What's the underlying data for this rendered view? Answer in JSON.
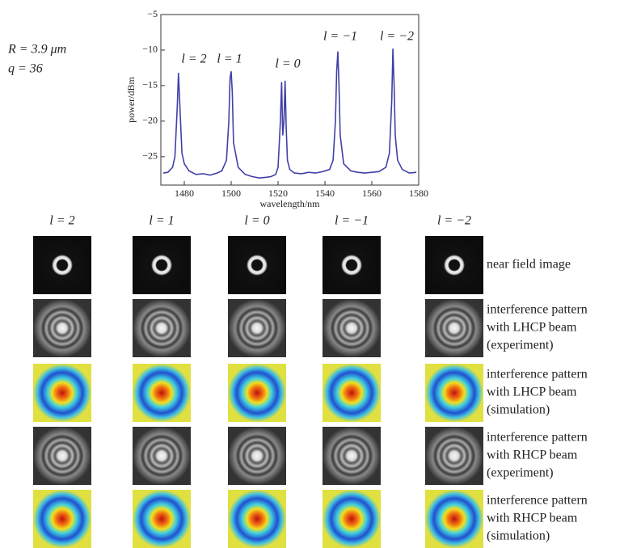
{
  "chart_data": {
    "type": "line",
    "color": "#4040a8",
    "annotations": [
      "R = 3.9 μm",
      "q = 36"
    ],
    "peak_labels": [
      "l = 2",
      "l = 1",
      "l = 0",
      "l = −1",
      "l = −2"
    ],
    "x_label": "wavelength/nm",
    "y_label": "power/dBm",
    "xlim": [
      1470,
      1580
    ],
    "xticks": [
      1480,
      1500,
      1520,
      1540,
      1560,
      1580
    ],
    "ylim": [
      -29,
      -5
    ],
    "yticks": [
      {
        "value": -25,
        "label": "−25"
      },
      {
        "value": -20,
        "label": "−20"
      },
      {
        "value": -15,
        "label": "−15"
      },
      {
        "value": -10,
        "label": "−10"
      },
      {
        "value": -5,
        "label": "−5"
      }
    ],
    "x": [
      1471,
      1473,
      1475,
      1476,
      1477,
      1477.5,
      1478,
      1479,
      1480,
      1482,
      1485,
      1488,
      1491,
      1494,
      1496,
      1498,
      1499,
      1499.5,
      1500,
      1500.5,
      1501,
      1503,
      1506,
      1509,
      1512,
      1515,
      1517,
      1519,
      1520,
      1521,
      1521.5,
      1522,
      1522.5,
      1523,
      1523.5,
      1524,
      1525,
      1527,
      1530,
      1533,
      1536,
      1539,
      1542,
      1543.5,
      1544.5,
      1545,
      1545.5,
      1546,
      1546.5,
      1548,
      1551,
      1554,
      1557,
      1560,
      1563,
      1566,
      1567.5,
      1568.5,
      1569,
      1569.5,
      1570,
      1571,
      1573,
      1576,
      1579
    ],
    "values": [
      -27.3,
      -27.2,
      -26.5,
      -25,
      -18,
      -13.2,
      -17,
      -24.5,
      -26,
      -27,
      -27.5,
      -27.4,
      -27.6,
      -27.3,
      -27,
      -25.5,
      -20,
      -14,
      -13,
      -16,
      -23,
      -26.5,
      -27.5,
      -27.8,
      -28,
      -27.9,
      -27.8,
      -27.5,
      -26.5,
      -20,
      -14.5,
      -22,
      -20,
      -14.3,
      -21,
      -25.5,
      -26.8,
      -27.3,
      -27.4,
      -27.2,
      -27.3,
      -27.1,
      -26.8,
      -25.5,
      -20,
      -13,
      -10.2,
      -15,
      -22,
      -26,
      -27,
      -27.2,
      -27.3,
      -27.2,
      -27.1,
      -26.5,
      -24.5,
      -17,
      -9.8,
      -15,
      -22,
      -25.5,
      -26.8,
      -27.3,
      -27.2
    ]
  },
  "panels": {
    "columns": [
      "l = 2",
      "l = 1",
      "l = 0",
      "l = −1",
      "l = −2"
    ],
    "rows": [
      {
        "lines": [
          "near field image"
        ]
      },
      {
        "lines": [
          "interference pattern",
          "with LHCP beam",
          "(experiment)"
        ]
      },
      {
        "lines": [
          "interference pattern",
          "with LHCP beam",
          "(simulation)"
        ]
      },
      {
        "lines": [
          "interference pattern",
          "with RHCP beam",
          "(experiment)"
        ]
      },
      {
        "lines": [
          "interference pattern",
          "with RHCP beam",
          "(simulation)"
        ]
      }
    ]
  }
}
